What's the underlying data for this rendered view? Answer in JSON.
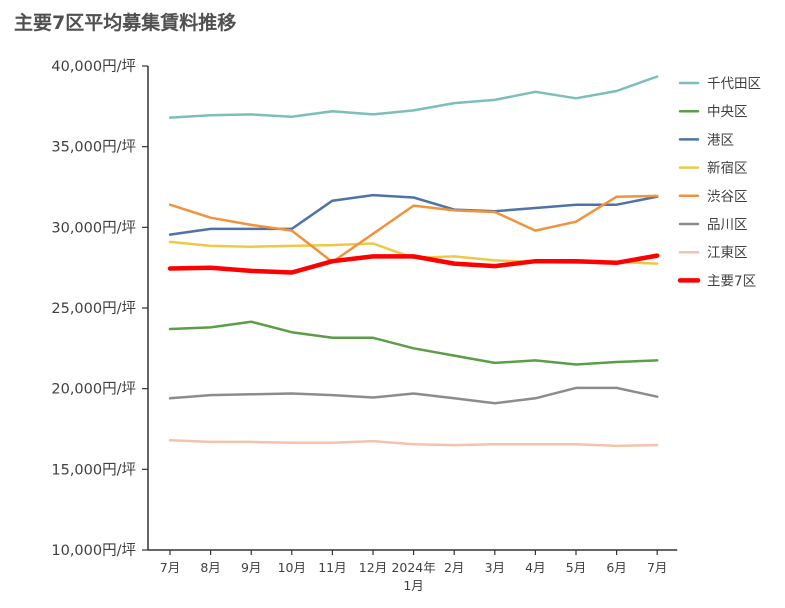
{
  "chart_data": {
    "type": "line",
    "title": "主要7区平均募集賃料推移",
    "xlabel": "",
    "ylabel": "",
    "ylim": [
      10000,
      40000
    ],
    "yticks": [
      "10,000円/坪",
      "15,000円/坪",
      "20,000円/坪",
      "25,000円/坪",
      "30,000円/坪",
      "35,000円/坪",
      "40,000円/坪"
    ],
    "ytick_values": [
      10000,
      15000,
      20000,
      25000,
      30000,
      35000,
      40000
    ],
    "categories": [
      "7月",
      "8月",
      "9月",
      "10月",
      "11月",
      "12月",
      "2024年\n1月",
      "2月",
      "3月",
      "4月",
      "5月",
      "6月",
      "7月"
    ],
    "grid": false,
    "legend_position": "right",
    "series": [
      {
        "name": "千代田区",
        "color": "#7BBFB8",
        "width": 2.5,
        "values": [
          36800,
          36950,
          37000,
          36850,
          37200,
          37000,
          37250,
          37700,
          37900,
          38400,
          38000,
          38450,
          39350
        ]
      },
      {
        "name": "中央区",
        "color": "#5B9E47",
        "width": 2.5,
        "values": [
          23700,
          23800,
          24150,
          23500,
          23150,
          23150,
          22500,
          22050,
          21600,
          21750,
          21500,
          21650,
          21750
        ]
      },
      {
        "name": "港区",
        "color": "#4E73A6",
        "width": 2.5,
        "values": [
          29550,
          29900,
          29900,
          29900,
          31650,
          32000,
          31850,
          31100,
          31000,
          31200,
          31400,
          31400,
          31900
        ]
      },
      {
        "name": "新宿区",
        "color": "#EDC945",
        "width": 2.5,
        "values": [
          29100,
          28850,
          28800,
          28850,
          28900,
          29000,
          28100,
          28200,
          27950,
          27850,
          27800,
          27850,
          27750
        ]
      },
      {
        "name": "渋谷区",
        "color": "#F0933C",
        "width": 2.5,
        "values": [
          31400,
          30600,
          30150,
          29800,
          27850,
          29600,
          31350,
          31050,
          30950,
          29800,
          30350,
          31900,
          31950
        ]
      },
      {
        "name": "品川区",
        "color": "#8C8C8C",
        "width": 2.5,
        "values": [
          19400,
          19600,
          19650,
          19700,
          19600,
          19450,
          19700,
          19400,
          19100,
          19400,
          20050,
          20050,
          19500
        ]
      },
      {
        "name": "江東区",
        "color": "#F3C3AD",
        "width": 2.5,
        "values": [
          16800,
          16700,
          16700,
          16650,
          16650,
          16750,
          16550,
          16500,
          16550,
          16550,
          16550,
          16450,
          16500
        ]
      },
      {
        "name": "主要7区",
        "color": "#FF0000",
        "width": 4.5,
        "values": [
          27450,
          27500,
          27300,
          27200,
          27900,
          28200,
          28200,
          27750,
          27600,
          27900,
          27900,
          27800,
          28250
        ]
      }
    ]
  }
}
